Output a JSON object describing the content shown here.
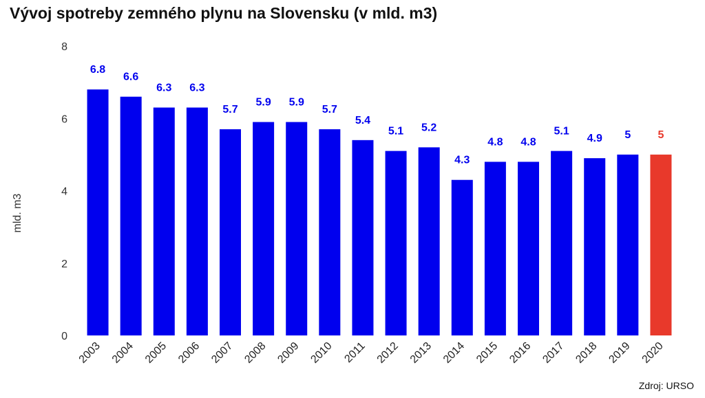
{
  "chart_data": {
    "type": "bar",
    "title": "Vývoj spotreby zemného plynu na Slovensku (v mld. m3)",
    "xlabel": "",
    "ylabel": "mld. m3",
    "ylim": [
      0,
      8
    ],
    "yticks": [
      0,
      2,
      4,
      6,
      8
    ],
    "grid": false,
    "categories": [
      "2003",
      "2004",
      "2005",
      "2006",
      "2007",
      "2008",
      "2009",
      "2010",
      "2011",
      "2012",
      "2013",
      "2014",
      "2015",
      "2016",
      "2017",
      "2018",
      "2019",
      "2020"
    ],
    "values": [
      6.8,
      6.6,
      6.3,
      6.3,
      5.7,
      5.9,
      5.9,
      5.7,
      5.4,
      5.1,
      5.2,
      4.3,
      4.8,
      4.8,
      5.1,
      4.9,
      5,
      5
    ],
    "data_labels": [
      "6.8",
      "6.6",
      "6.3",
      "6.3",
      "5.7",
      "5.9",
      "5.9",
      "5.7",
      "5.4",
      "5.1",
      "5.2",
      "4.3",
      "4.8",
      "4.8",
      "5.1",
      "4.9",
      "5",
      "5"
    ],
    "colors": {
      "default": "#0000ee",
      "highlight": "#e8392b"
    },
    "highlight_categories": [
      "2020"
    ],
    "source": "Zdroj: URSO"
  }
}
